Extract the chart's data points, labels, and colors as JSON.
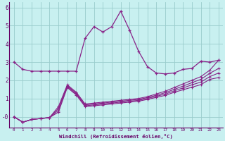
{
  "xlabel": "Windchill (Refroidissement éolien,°C)",
  "bg_color": "#c8f0f0",
  "line_color": "#882288",
  "grid_color": "#99cccc",
  "hours": [
    0,
    1,
    2,
    3,
    4,
    5,
    6,
    7,
    8,
    9,
    10,
    11,
    12,
    13,
    14,
    15,
    16,
    17,
    18,
    19,
    20,
    21,
    22,
    23
  ],
  "temp": [
    3.0,
    2.6,
    2.5,
    2.5,
    2.5,
    2.5,
    2.5,
    2.5,
    4.3,
    4.95,
    4.65,
    4.95,
    5.8,
    4.75,
    3.6,
    2.75,
    2.4,
    2.35,
    2.4,
    2.6,
    2.65,
    3.05,
    3.0,
    3.1
  ],
  "wc_top": [
    0.0,
    -0.3,
    -0.15,
    -0.1,
    -0.05,
    0.55,
    1.75,
    1.35,
    0.7,
    0.75,
    0.8,
    0.85,
    0.9,
    0.95,
    1.0,
    1.1,
    1.25,
    1.4,
    1.6,
    1.8,
    2.0,
    2.2,
    2.55,
    3.1
  ],
  "wc_mid1": [
    0.0,
    -0.3,
    -0.15,
    -0.1,
    -0.05,
    0.45,
    1.7,
    1.3,
    0.65,
    0.7,
    0.75,
    0.8,
    0.85,
    0.9,
    0.95,
    1.05,
    1.18,
    1.32,
    1.5,
    1.68,
    1.87,
    2.05,
    2.38,
    2.65
  ],
  "wc_mid2": [
    0.0,
    -0.3,
    -0.15,
    -0.1,
    -0.05,
    0.35,
    1.65,
    1.25,
    0.6,
    0.65,
    0.7,
    0.75,
    0.8,
    0.85,
    0.9,
    1.0,
    1.12,
    1.24,
    1.42,
    1.58,
    1.75,
    1.9,
    2.2,
    2.4
  ],
  "wc_bot": [
    0.0,
    -0.3,
    -0.15,
    -0.1,
    -0.05,
    0.25,
    1.6,
    1.2,
    0.55,
    0.6,
    0.65,
    0.7,
    0.75,
    0.8,
    0.85,
    0.95,
    1.06,
    1.17,
    1.34,
    1.48,
    1.62,
    1.76,
    2.05,
    2.15
  ],
  "ylim": [
    -0.6,
    6.3
  ],
  "xlim": [
    -0.5,
    23.5
  ],
  "yticks": [
    0,
    1,
    2,
    3,
    4,
    5,
    6
  ],
  "ytick_labels": [
    "-0",
    "1",
    "2",
    "3",
    "4",
    "5",
    "6"
  ]
}
